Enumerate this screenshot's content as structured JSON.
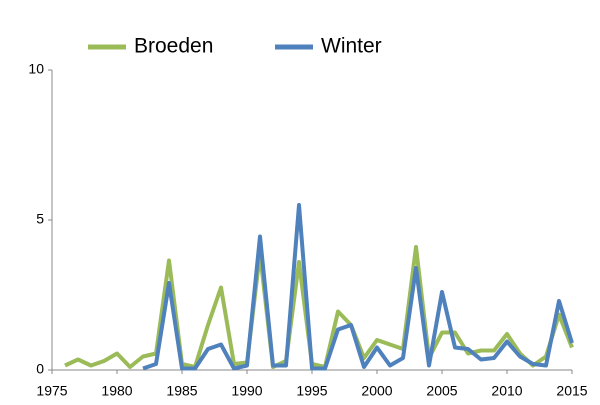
{
  "chart_data": {
    "type": "line",
    "x": [
      1976,
      1977,
      1978,
      1979,
      1980,
      1981,
      1982,
      1983,
      1984,
      1985,
      1986,
      1987,
      1988,
      1989,
      1990,
      1991,
      1992,
      1993,
      1994,
      1995,
      1996,
      1997,
      1998,
      1999,
      2000,
      2001,
      2002,
      2003,
      2004,
      2005,
      2006,
      2007,
      2008,
      2009,
      2010,
      2011,
      2012,
      2013,
      2014,
      2015
    ],
    "series": [
      {
        "name": "Broeden",
        "color": "#9bbb59",
        "values": [
          0.15,
          0.35,
          0.15,
          0.3,
          0.55,
          0.1,
          0.45,
          0.55,
          3.65,
          0.2,
          0.1,
          1.5,
          2.75,
          0.2,
          0.25,
          3.9,
          0.1,
          0.3,
          3.6,
          0.2,
          0.1,
          1.95,
          1.5,
          0.4,
          1.0,
          0.85,
          0.7,
          4.1,
          0.4,
          1.25,
          1.25,
          0.55,
          0.65,
          0.65,
          1.2,
          0.55,
          0.15,
          0.45,
          1.85,
          0.75
        ]
      },
      {
        "name": "Winter",
        "color": "#4f81bd",
        "values": [
          null,
          null,
          null,
          null,
          null,
          null,
          0.05,
          0.2,
          2.9,
          0.05,
          0.05,
          0.7,
          0.85,
          0.05,
          0.15,
          4.45,
          0.15,
          0.15,
          5.5,
          0.05,
          0.05,
          1.35,
          1.5,
          0.1,
          0.75,
          0.15,
          0.4,
          3.4,
          0.15,
          2.6,
          0.75,
          0.7,
          0.35,
          0.4,
          0.95,
          0.45,
          0.2,
          0.15,
          2.3,
          0.9
        ]
      }
    ],
    "xlim": [
      1975,
      2015
    ],
    "xticks": [
      1975,
      1980,
      1985,
      1990,
      1995,
      2000,
      2005,
      2010,
      2015
    ],
    "ylim": [
      0,
      10
    ],
    "yticks": [
      0,
      5,
      10
    ],
    "grid": false,
    "legend": "top"
  }
}
